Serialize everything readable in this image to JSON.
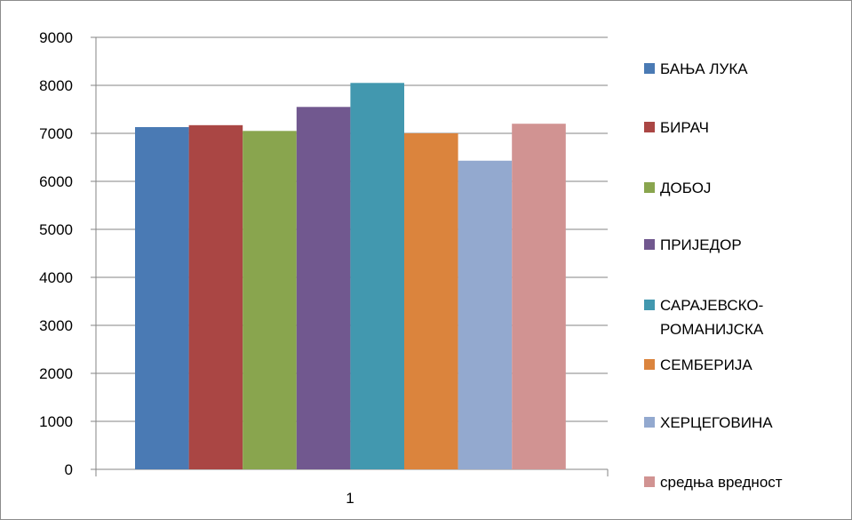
{
  "chart_data": {
    "type": "bar",
    "categories": [
      "1"
    ],
    "ylim": [
      0,
      9000
    ],
    "yticks": [
      0,
      1000,
      2000,
      3000,
      4000,
      5000,
      6000,
      7000,
      8000,
      9000
    ],
    "grid": true,
    "legend_position": "right",
    "title": "",
    "xlabel": "",
    "ylabel": "",
    "series": [
      {
        "name": "БАЊА ЛУКА",
        "values": [
          7130
        ],
        "color": "#4a7ab4"
      },
      {
        "name": "БИРАЧ",
        "values": [
          7170
        ],
        "color": "#aa4644"
      },
      {
        "name": "ДОБОЈ",
        "values": [
          7050
        ],
        "color": "#89a54e"
      },
      {
        "name": "ПРИЈЕДОР",
        "values": [
          7550
        ],
        "color": "#71588f"
      },
      {
        "name": "САРАЈЕВСКО-РОМАНИЈСКА",
        "values": [
          8050
        ],
        "color": "#4298af"
      },
      {
        "name": "СЕМБЕРИЈА",
        "values": [
          7000
        ],
        "color": "#db843d"
      },
      {
        "name": "ХЕРЦЕГОВИНА",
        "values": [
          6430
        ],
        "color": "#93a9cf"
      },
      {
        "name": "средња вредност",
        "values": [
          7200
        ],
        "color": "#d19392"
      }
    ]
  }
}
